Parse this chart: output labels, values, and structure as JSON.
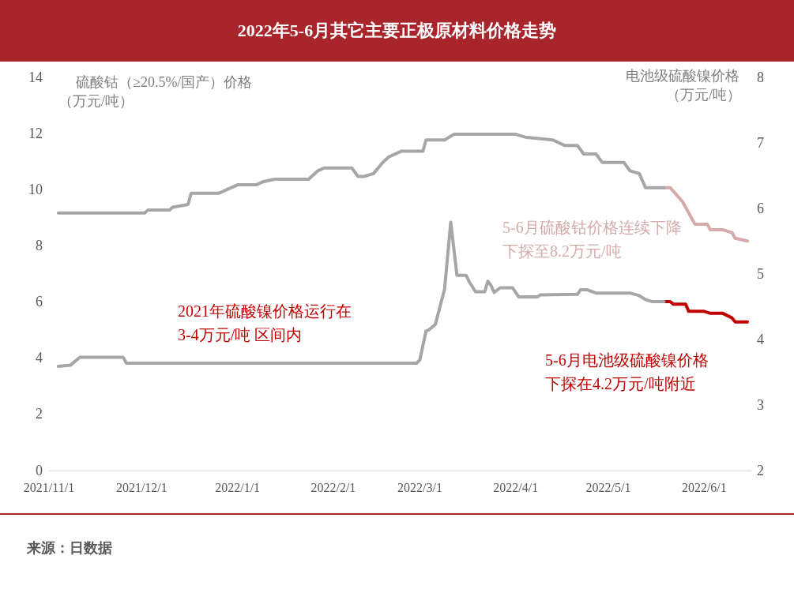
{
  "chart_data": {
    "type": "line",
    "title": "2022年5-6月其它主要正极原材料价格走势",
    "ylabel": "硫酸钴（≥20.5%/国产）价格（万元/吨）",
    "y2label": "电池级硫酸镍价格（万元/吨）",
    "series": [
      {
        "color": "#a6a6a6",
        "x": [
          "2021-11-04",
          "2021-11-06",
          "2021-12-02",
          "2021-12-03",
          "2021-12-10",
          "2021-12-11",
          "2021-12-16",
          "2021-12-17",
          "2021-12-23",
          "2021-12-26",
          "2021-12-30",
          "2022-01-01",
          "2022-01-07",
          "2022-01-09",
          "2022-01-13",
          "2022-01-24",
          "2022-01-27",
          "2022-01-29",
          "2022-02-07",
          "2022-02-09",
          "2022-02-11",
          "2022-02-14",
          "2022-02-17",
          "2022-02-19",
          "2022-02-23",
          "2022-03-02",
          "2022-03-03",
          "2022-03-06",
          "2022-03-09",
          "2022-03-12",
          "2022-04-01",
          "2022-04-04",
          "2022-04-13",
          "2022-04-17",
          "2022-04-21",
          "2022-04-23",
          "2022-04-27",
          "2022-04-29",
          "2022-05-06",
          "2022-05-08",
          "2022-05-11",
          "2022-05-13",
          "2022-05-19"
        ],
        "values": [
          9.2,
          9.2,
          9.2,
          9.3,
          9.3,
          9.4,
          9.5,
          9.9,
          9.9,
          9.9,
          10.1,
          10.2,
          10.2,
          10.3,
          10.4,
          10.4,
          10.7,
          10.8,
          10.8,
          10.5,
          10.5,
          10.6,
          11.0,
          11.2,
          11.4,
          11.4,
          11.8,
          11.8,
          11.8,
          12.0,
          12.0,
          11.9,
          11.8,
          11.6,
          11.6,
          11.3,
          11.3,
          11.0,
          11.0,
          10.7,
          10.6,
          10.1,
          10.1
        ]
      },
      {
        "color": "#d4aaaa",
        "x": [
          "2022-05-19",
          "2022-05-21",
          "2022-05-25",
          "2022-05-29",
          "2022-06-02",
          "2022-06-03",
          "2022-06-07",
          "2022-06-10",
          "2022-06-11",
          "2022-06-15"
        ],
        "values": [
          10.1,
          10.1,
          9.6,
          8.8,
          8.8,
          8.6,
          8.6,
          8.5,
          8.3,
          8.2
        ]
      },
      {
        "color": "#a6a6a6",
        "axis": "y2",
        "x": [
          "2021-11-04",
          "2021-11-08",
          "2021-11-11",
          "2021-11-25",
          "2021-11-26",
          "2022-02-28",
          "2022-03-01",
          "2022-03-03",
          "2022-03-04",
          "2022-03-06",
          "2022-03-09",
          "2022-03-11",
          "2022-03-13",
          "2022-03-16",
          "2022-03-17",
          "2022-03-19",
          "2022-03-22",
          "2022-03-23",
          "2022-03-24",
          "2022-03-25",
          "2022-03-27",
          "2022-03-31",
          "2022-04-02",
          "2022-04-08",
          "2022-04-09",
          "2022-04-21",
          "2022-04-22",
          "2022-04-24",
          "2022-04-27",
          "2022-05-08",
          "2022-05-11",
          "2022-05-13",
          "2022-05-15",
          "2022-05-19"
        ],
        "values": [
          3.6,
          3.62,
          3.74,
          3.74,
          3.65,
          3.65,
          3.7,
          4.14,
          4.16,
          4.24,
          4.78,
          5.8,
          4.99,
          4.99,
          4.89,
          4.74,
          4.74,
          4.9,
          4.84,
          4.73,
          4.8,
          4.8,
          4.66,
          4.66,
          4.69,
          4.7,
          4.77,
          4.77,
          4.72,
          4.72,
          4.68,
          4.62,
          4.59,
          4.59
        ]
      },
      {
        "color": "#c00000",
        "axis": "y2",
        "x": [
          "2022-05-19",
          "2022-05-21",
          "2022-05-22",
          "2022-05-26",
          "2022-05-27",
          "2022-06-01",
          "2022-06-03",
          "2022-06-07",
          "2022-06-10",
          "2022-06-11",
          "2022-06-15"
        ],
        "values": [
          4.59,
          4.59,
          4.55,
          4.55,
          4.44,
          4.44,
          4.41,
          4.41,
          4.34,
          4.28,
          4.28
        ]
      }
    ],
    "xlim": [
      "2021-11-01",
      "2022-06-16"
    ],
    "xticks": [
      {
        "value": "2021-11-01",
        "label": "2021/11/1"
      },
      {
        "value": "2021-12-01",
        "label": "2021/12/1"
      },
      {
        "value": "2022-01-01",
        "label": "2022/1/1"
      },
      {
        "value": "2022-02-01",
        "label": "2022/2/1"
      },
      {
        "value": "2022-03-01",
        "label": "2022/3/1"
      },
      {
        "value": "2022-04-01",
        "label": "2022/4/1"
      },
      {
        "value": "2022-05-01",
        "label": "2022/5/1"
      },
      {
        "value": "2022-06-01",
        "label": "2022/6/1"
      }
    ],
    "ylim": [
      0,
      14
    ],
    "yticks": [
      0,
      2,
      4,
      6,
      8,
      10,
      12,
      14
    ],
    "y2lim": [
      2,
      8
    ],
    "y2ticks": [
      2,
      3,
      4,
      5,
      6,
      7,
      8
    ],
    "grid": false,
    "legend": false,
    "marker": "none",
    "line_style": "solid",
    "annotations": [
      "2021年硫酸镍价格运行在 3-4万元/吨 区间内",
      "5-6月硫酸钴价格连续下降下探至8.2万元/吨",
      "5-6月电池级硫酸镍价格下探在4.2万元/吨附近",
      "来源：日数据"
    ]
  }
}
